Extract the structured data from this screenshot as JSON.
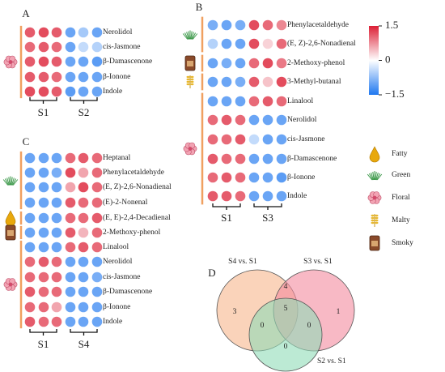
{
  "chart_data": [
    {
      "type": "heatmap",
      "panel": "A",
      "rows": [
        "Nerolidol",
        "cis-Jasmone",
        "β-Damascenone",
        "β-Ionone",
        "Indole"
      ],
      "groups": [
        "S1",
        "S2"
      ],
      "values": [
        [
          1.1,
          1.2,
          1.1,
          -1.0,
          -0.6,
          -1.0
        ],
        [
          1.0,
          1.1,
          1.0,
          -1.0,
          -0.4,
          -0.5
        ],
        [
          1.1,
          1.2,
          1.1,
          -1.0,
          -1.0,
          -1.1
        ],
        [
          1.1,
          1.1,
          1.0,
          -1.0,
          -1.0,
          -1.0
        ],
        [
          1.2,
          1.2,
          1.1,
          -1.1,
          -1.0,
          -1.0
        ]
      ]
    },
    {
      "type": "heatmap",
      "panel": "B",
      "rows": [
        "Phenylacetaldehyde",
        "(E, Z)-2,6-Nonadienal",
        "2-Methoxy-phenol",
        "3-Methyl-butanal",
        "Linalool",
        "Nerolidol",
        "cis-Jasmone",
        "β-Damascenone",
        "β-Ionone",
        "Indole"
      ],
      "groups": [
        "S1",
        "S3"
      ],
      "values": [
        [
          -0.9,
          -1.0,
          -0.9,
          1.2,
          1.0,
          0.8
        ],
        [
          -0.5,
          -1.0,
          -1.0,
          1.2,
          0.3,
          1.0
        ],
        [
          -1.0,
          -0.9,
          -1.0,
          1.0,
          1.2,
          0.9
        ],
        [
          -1.0,
          -1.0,
          -0.9,
          1.1,
          0.4,
          1.2
        ],
        [
          -1.0,
          -1.0,
          -1.0,
          1.0,
          1.1,
          1.0
        ],
        [
          1.0,
          1.1,
          1.0,
          -1.0,
          -1.0,
          -1.0
        ],
        [
          1.0,
          1.0,
          1.1,
          -0.4,
          -1.0,
          -1.0
        ],
        [
          1.1,
          1.0,
          1.0,
          -1.0,
          -1.0,
          -1.0
        ],
        [
          1.0,
          1.1,
          1.0,
          -1.0,
          -1.0,
          -1.1
        ],
        [
          1.1,
          1.1,
          1.0,
          -1.0,
          -1.0,
          -1.0
        ]
      ]
    },
    {
      "type": "heatmap",
      "panel": "C",
      "rows": [
        "Heptanal",
        "Phenylacetaldehyde",
        "(E, Z)-2,6-Nonadienal",
        "(E)-2-Nonenal",
        "(E, E)-2,4-Decadienal",
        "2-Methoxy-phenol",
        "Linalool",
        "Nerolidol",
        "cis-Jasmone",
        "β-Damascenone",
        "β-Ionone",
        "Indole"
      ],
      "groups": [
        "S1",
        "S4"
      ],
      "values": [
        [
          -1.0,
          -1.0,
          -1.0,
          1.0,
          1.1,
          1.0
        ],
        [
          -1.0,
          -1.0,
          -0.9,
          1.2,
          0.6,
          1.0
        ],
        [
          -1.0,
          -1.0,
          -1.0,
          0.6,
          1.2,
          1.0
        ],
        [
          -1.0,
          -1.0,
          -1.0,
          1.1,
          1.0,
          1.0
        ],
        [
          -1.0,
          -1.0,
          -1.0,
          1.0,
          1.0,
          1.1
        ],
        [
          -1.0,
          -1.0,
          -1.0,
          1.1,
          0.5,
          1.0
        ],
        [
          -1.0,
          -1.0,
          -1.0,
          1.0,
          1.1,
          1.0
        ],
        [
          1.0,
          1.1,
          1.0,
          -1.0,
          -1.0,
          -1.0
        ],
        [
          1.0,
          1.0,
          1.0,
          -1.0,
          -1.0,
          -0.9
        ],
        [
          1.1,
          1.0,
          1.0,
          -1.0,
          -1.0,
          -1.0
        ],
        [
          1.0,
          1.0,
          0.6,
          -1.0,
          -1.0,
          -1.0
        ],
        [
          1.1,
          1.0,
          1.0,
          -1.0,
          -1.0,
          -1.0
        ]
      ]
    },
    {
      "type": "venn",
      "panel": "D",
      "sets": [
        "S4 vs. S1",
        "S3 vs. S1",
        "S2 vs. S1"
      ],
      "colors": [
        "#f6b58c",
        "#f48a9e",
        "#8fdcb8"
      ],
      "values": [
        3,
        4,
        1,
        5,
        0,
        0,
        0
      ]
    }
  ],
  "color_scale": {
    "lim": [
      -1.5,
      1.5
    ],
    "ticks": [
      1.5,
      0,
      {
        "value": -1.5,
        "label": "−1.5"
      }
    ],
    "colors": [
      "#1f78f0",
      "#ffffff",
      "#dc1f35"
    ]
  },
  "odor_legend": [
    "Fatty",
    "Green",
    "Floral",
    "Malty",
    "Smoky"
  ]
}
